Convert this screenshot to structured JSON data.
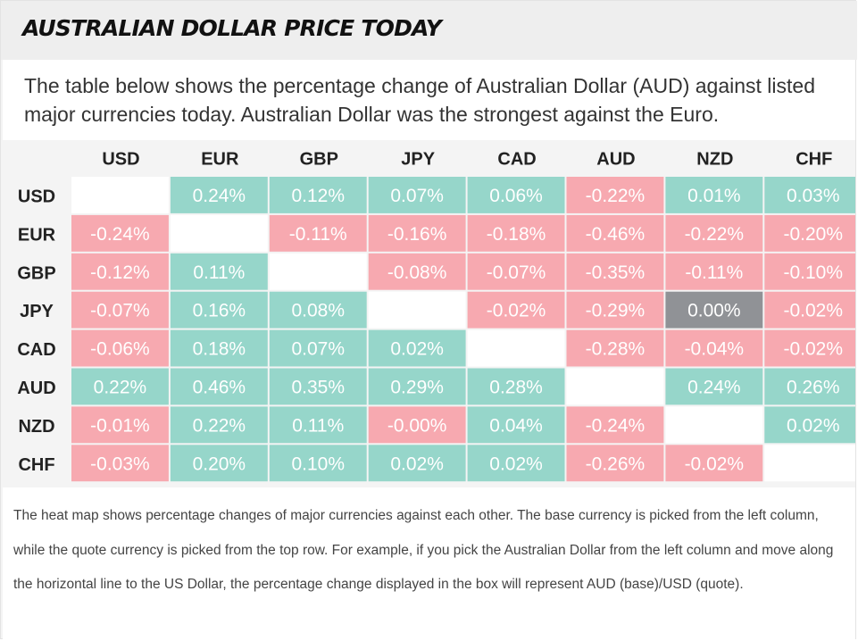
{
  "header": {
    "title": "AUSTRALIAN DOLLAR PRICE TODAY"
  },
  "intro": "The table below shows the percentage change of Australian Dollar (AUD) against listed major currencies today. Australian Dollar was the strongest against the Euro.",
  "footer_text": "The heat map shows percentage changes of major currencies against each other. The base currency is picked from the left column, while the quote currency is picked from the top row. For example, if you pick the Australian Dollar from the left column and move along the horizontal line to the US Dollar, the percentage change displayed in the box will represent AUD (base)/USD (quote).",
  "colors": {
    "positive": "#96d6ca",
    "negative": "#f7a9b0",
    "neutral": "#909296",
    "diagonal": "#ffffff"
  },
  "chart_data": {
    "type": "heatmap",
    "columns": [
      "USD",
      "EUR",
      "GBP",
      "JPY",
      "CAD",
      "AUD",
      "NZD",
      "CHF"
    ],
    "rows": [
      "USD",
      "EUR",
      "GBP",
      "JPY",
      "CAD",
      "AUD",
      "NZD",
      "CHF"
    ],
    "values": [
      [
        null,
        "0.24%",
        "0.12%",
        "0.07%",
        "0.06%",
        "-0.22%",
        "0.01%",
        "0.03%"
      ],
      [
        "-0.24%",
        null,
        "-0.11%",
        "-0.16%",
        "-0.18%",
        "-0.46%",
        "-0.22%",
        "-0.20%"
      ],
      [
        "-0.12%",
        "0.11%",
        null,
        "-0.08%",
        "-0.07%",
        "-0.35%",
        "-0.11%",
        "-0.10%"
      ],
      [
        "-0.07%",
        "0.16%",
        "0.08%",
        null,
        "-0.02%",
        "-0.29%",
        "0.00%",
        "-0.02%"
      ],
      [
        "-0.06%",
        "0.18%",
        "0.07%",
        "0.02%",
        null,
        "-0.28%",
        "-0.04%",
        "-0.02%"
      ],
      [
        "0.22%",
        "0.46%",
        "0.35%",
        "0.29%",
        "0.28%",
        null,
        "0.24%",
        "0.26%"
      ],
      [
        "-0.01%",
        "0.22%",
        "0.11%",
        "-0.00%",
        "0.04%",
        "-0.24%",
        null,
        "0.02%"
      ],
      [
        "-0.03%",
        "0.20%",
        "0.10%",
        "0.02%",
        "0.02%",
        "-0.26%",
        "-0.02%",
        null
      ]
    ]
  }
}
